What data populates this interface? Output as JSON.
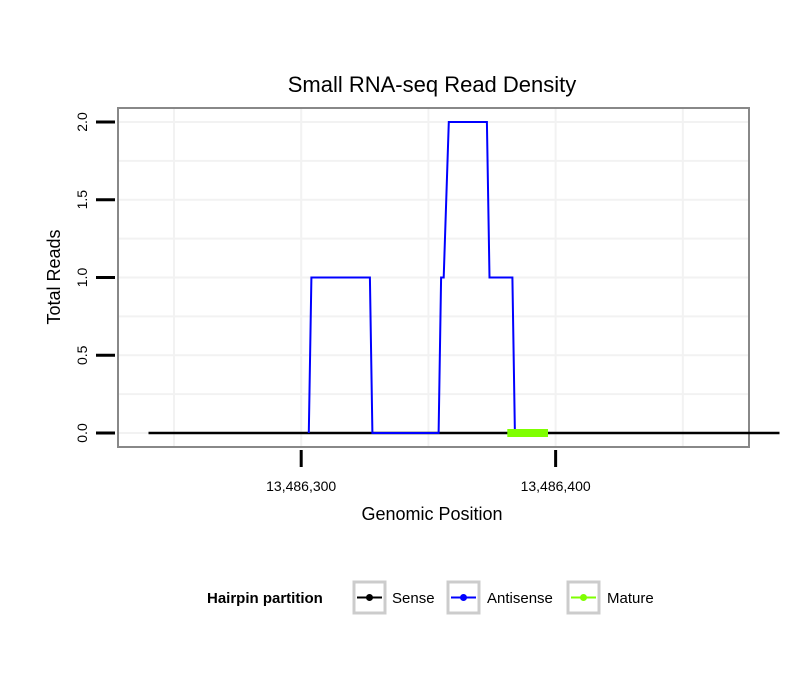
{
  "chart_data": {
    "type": "line",
    "title": "Small RNA-seq Read Density",
    "xlabel": "Genomic Position",
    "ylabel": "Total Reads",
    "xlim": [
      13486228,
      13486476
    ],
    "ylim": [
      -0.09,
      2.09
    ],
    "x_ticks": [
      {
        "value": 13486300,
        "label": "13,486,300"
      },
      {
        "value": 13486400,
        "label": "13,486,400"
      }
    ],
    "y_ticks": [
      {
        "value": 0.0,
        "label": "0.0"
      },
      {
        "value": 0.5,
        "label": "0.5"
      },
      {
        "value": 1.0,
        "label": "1.0"
      },
      {
        "value": 1.5,
        "label": "1.5"
      },
      {
        "value": 2.0,
        "label": "2.0"
      }
    ],
    "grid": true,
    "legend_title": "Hairpin partition",
    "legend_position": "bottom",
    "series": [
      {
        "name": "Sense",
        "color": "#000000",
        "x": [
          13486240,
          13486488
        ],
        "values": [
          0,
          0
        ]
      },
      {
        "name": "Antisense",
        "color": "#0000ff",
        "x": [
          13486303,
          13486304,
          13486327,
          13486328,
          13486354,
          13486355,
          13486356,
          13486358,
          13486373,
          13486374,
          13486383,
          13486384
        ],
        "values": [
          0,
          1,
          1,
          0,
          0,
          1,
          1,
          2,
          2,
          1,
          1,
          0
        ]
      },
      {
        "name": "Mature",
        "color": "#7fff00",
        "x": [
          13486381,
          13486397
        ],
        "values": [
          0,
          0
        ]
      }
    ]
  }
}
